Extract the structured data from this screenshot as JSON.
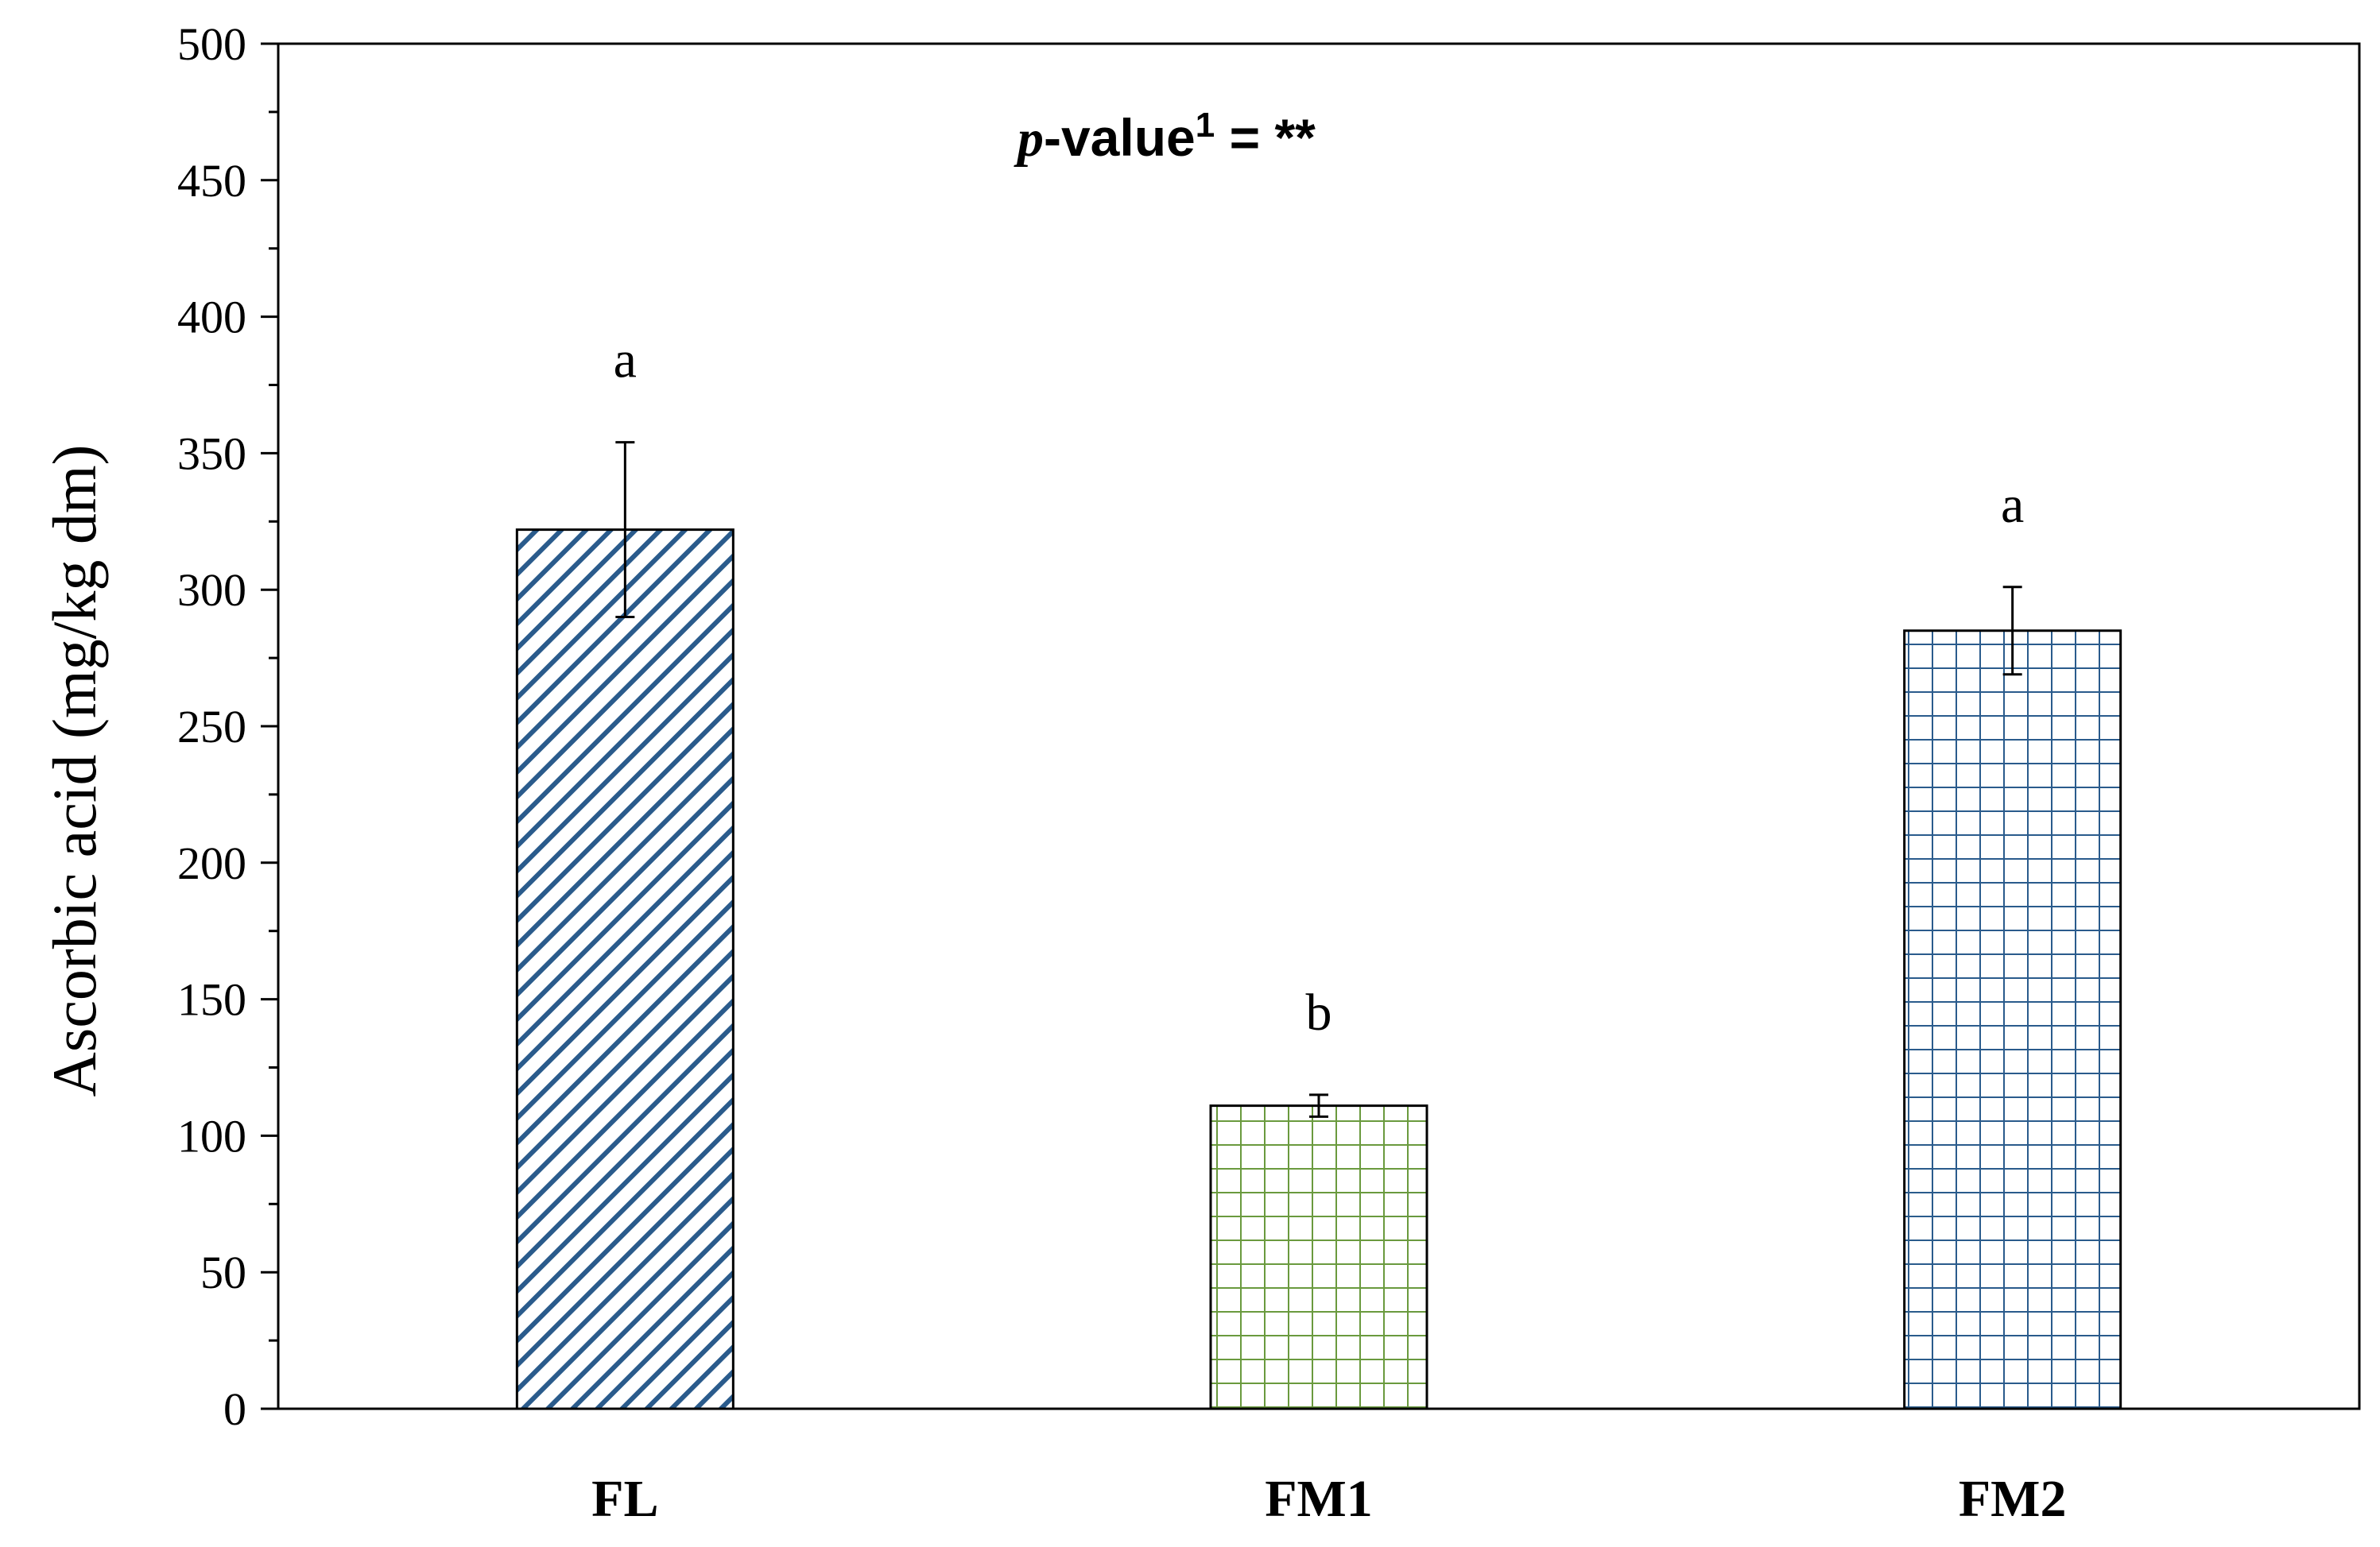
{
  "chart_data": {
    "type": "bar",
    "categories": [
      "FL",
      "FM1",
      "FM2"
    ],
    "values": [
      322,
      111,
      285
    ],
    "errors": [
      32,
      4,
      16
    ],
    "significance_letters": [
      "a",
      "b",
      "a"
    ],
    "ylabel": "Ascorbic acid (mg/kg dm)",
    "xlabel": "",
    "ylim": [
      0,
      500
    ],
    "yticks": [
      0,
      50,
      100,
      150,
      200,
      250,
      300,
      350,
      400,
      450,
      500
    ],
    "annotation": {
      "p": "p",
      "rest": "-value",
      "sup": "1",
      "tail": " = **"
    },
    "bar_patterns": [
      "diagonal",
      "grid",
      "grid"
    ],
    "bar_colors": [
      "#2a5b8c",
      "#6a9a3e",
      "#2a5b8c"
    ],
    "grid": false
  }
}
